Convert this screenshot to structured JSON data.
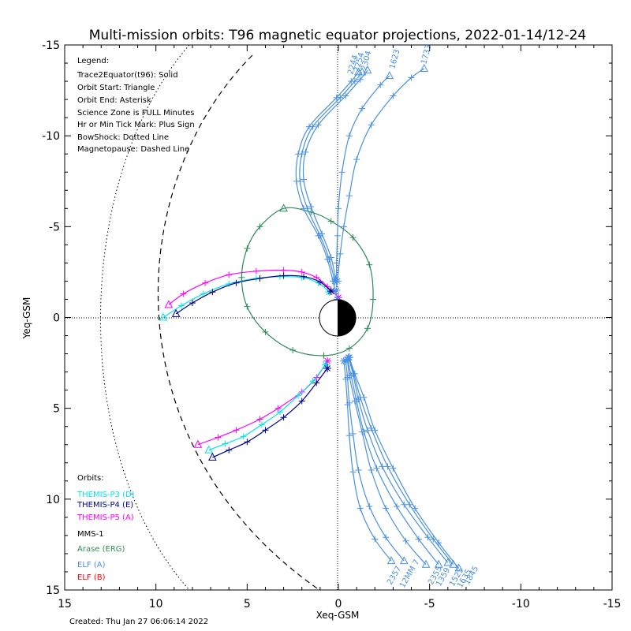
{
  "chart_data": {
    "type": "line",
    "title": "Multi-mission orbits: T96 magnetic equator projections, 2022-01-14/12-24",
    "xlabel": "Xeq-GSM",
    "ylabel": "Yeq-GSM",
    "xlim": [
      15,
      -15
    ],
    "ylim": [
      15,
      -15
    ],
    "x_ticks": [
      "15",
      "10",
      "5",
      "0",
      "-5",
      "-10",
      "-15"
    ],
    "y_ticks": [
      "-15",
      "-10",
      "-5",
      "0",
      "5",
      "10",
      "15"
    ],
    "grid": false,
    "legend_placement": "top-left",
    "created": "Created: Thu Jan 27 06:06:14 2022",
    "legend_text": [
      "Legend:",
      "Trace2Equator(t96): Solid",
      "Orbit Start: Triangle",
      "Orbit End: Asterisk",
      "Science Zone is FULL Minutes",
      "Hr or Min Tick Mark: Plus Sign",
      "BowShock: Dotted Line",
      "Magnetopause: Dashed Line"
    ],
    "orbits_title": "Orbits:",
    "orbits": [
      {
        "name": "THEMIS-P3 (D)",
        "color": "#00e5e5"
      },
      {
        "name": "THEMIS-P4 (E)",
        "color": "#00008b"
      },
      {
        "name": "THEMIS-P5 (A)",
        "color": "#ff00ff"
      },
      {
        "name": "MMS-1",
        "color": "#000000"
      },
      {
        "name": "Arase (ERG)",
        "color": "#2e8b57"
      },
      {
        "name": "ELF (A)",
        "color": "#4a90e2"
      },
      {
        "name": "ELF (B)",
        "color": "#ff0000"
      }
    ],
    "time_labels_top": [
      "2244",
      "2254",
      "2304",
      "1623",
      "1733"
    ],
    "time_labels_bottom": [
      "2357",
      "12MM 7",
      "2355",
      "1359",
      "1525",
      "1635",
      "1845"
    ],
    "series": [
      {
        "name": "THEMIS-P5 (A)",
        "color": "#ff00ff",
        "x": [
          9.3,
          8.5,
          7.3,
          6.0,
          4.5,
          3.0,
          2.0,
          1.2,
          0.6,
          0.0
        ],
        "y": [
          -0.7,
          -1.3,
          -1.9,
          -2.35,
          -2.55,
          -2.6,
          -2.5,
          -2.2,
          -1.7,
          -1.1
        ]
      },
      {
        "name": "THEMIS-P3 (D)",
        "color": "#00e5e5",
        "x": [
          9.6,
          8.6,
          7.4,
          6.0,
          4.5,
          3.2,
          2.0,
          1.1,
          0.5
        ],
        "y": [
          0.0,
          -0.65,
          -1.3,
          -1.85,
          -2.15,
          -2.25,
          -2.2,
          -1.9,
          -1.4
        ]
      },
      {
        "name": "THEMIS-P4 (E)",
        "color": "#00008b",
        "x": [
          8.9,
          8.0,
          6.9,
          5.6,
          4.3,
          3.0,
          1.9,
          1.0,
          0.4
        ],
        "y": [
          -0.2,
          -0.8,
          -1.4,
          -1.9,
          -2.15,
          -2.3,
          -2.25,
          -1.95,
          -1.45
        ]
      },
      {
        "name": "THEMIS-P5 (A)",
        "color": "#ff00ff",
        "x": [
          7.7,
          6.6,
          5.6,
          4.3,
          3.3,
          2.0,
          1.2,
          0.6
        ],
        "y": [
          7.0,
          6.6,
          6.2,
          5.6,
          5.0,
          4.1,
          3.3,
          2.4
        ]
      },
      {
        "name": "THEMIS-P3 (D)",
        "color": "#00e5e5",
        "x": [
          7.1,
          6.2,
          5.2,
          4.2,
          3.2,
          2.2,
          1.4,
          0.7
        ],
        "y": [
          7.3,
          6.95,
          6.55,
          5.9,
          5.2,
          4.3,
          3.5,
          2.6
        ]
      },
      {
        "name": "THEMIS-P4 (E)",
        "color": "#00008b",
        "x": [
          6.9,
          6.0,
          5.0,
          4.0,
          3.0,
          2.0,
          1.2,
          0.6
        ],
        "y": [
          7.7,
          7.3,
          6.85,
          6.2,
          5.5,
          4.6,
          3.6,
          2.8
        ]
      },
      {
        "name": "Arase (ERG)",
        "color": "#2e8b57",
        "closed": true,
        "x": [
          3.0,
          1.5,
          0.4,
          -0.8,
          -1.7,
          -1.9,
          -1.6,
          -0.6,
          0.8,
          2.5,
          4.0,
          5.0,
          5.3,
          5.0,
          4.3
        ],
        "y": [
          -6.0,
          -5.8,
          -5.3,
          -4.4,
          -2.9,
          -1.0,
          0.6,
          1.7,
          2.1,
          1.8,
          0.8,
          -0.6,
          -2.2,
          -3.8,
          -5.0
        ]
      },
      {
        "name": "ELF (A)",
        "color": "#4a90e2",
        "x": [
          -1.1,
          -0.7,
          0.1,
          1.6,
          2.2,
          2.3,
          1.9,
          1.1,
          0.6,
          0.3,
          0.05
        ],
        "y": [
          -13.5,
          -13.0,
          -12.1,
          -10.5,
          -9.0,
          -7.5,
          -6.0,
          -4.5,
          -3.2,
          -2.0,
          -1.0
        ]
      },
      {
        "name": "ELF (A)",
        "color": "#4a90e2",
        "x": [
          -1.3,
          -0.9,
          -0.1,
          1.4,
          2.0,
          2.1,
          1.7,
          1.0,
          0.5,
          0.2
        ],
        "y": [
          -13.5,
          -13.0,
          -12.1,
          -10.5,
          -9.0,
          -7.5,
          -6.0,
          -4.5,
          -3.2,
          -2.0
        ]
      },
      {
        "name": "ELF (A)",
        "color": "#4a90e2",
        "x": [
          -1.6,
          -1.2,
          -0.4,
          1.1,
          1.8,
          1.9,
          1.5,
          0.9,
          0.4,
          0.15
        ],
        "y": [
          -13.6,
          -13.1,
          -12.2,
          -10.6,
          -9.1,
          -7.6,
          -6.1,
          -4.6,
          -3.3,
          -2.1
        ]
      },
      {
        "name": "ELF (A)",
        "color": "#4a90e2",
        "x": [
          -2.8,
          -2.3,
          -1.3,
          -0.6,
          -0.2,
          0.0,
          0.05,
          0.1,
          0.1
        ],
        "y": [
          -13.3,
          -12.8,
          -11.5,
          -10.0,
          -8.0,
          -6.0,
          -4.5,
          -3.0,
          -1.5
        ]
      },
      {
        "name": "ELF (A)",
        "color": "#4a90e2",
        "x": [
          -4.7,
          -4.0,
          -3.0,
          -1.8,
          -1.0,
          -0.6,
          -0.3,
          -0.1,
          0.05
        ],
        "y": [
          -13.7,
          -13.2,
          -12.2,
          -10.6,
          -8.7,
          -6.7,
          -5.0,
          -3.5,
          -2.0
        ]
      },
      {
        "name": "ELF (A)",
        "color": "#4a90e2",
        "x": [
          -2.9,
          -2.0,
          -1.2,
          -0.8,
          -0.6,
          -0.5,
          -0.4,
          -0.3
        ],
        "y": [
          13.4,
          12.2,
          10.5,
          8.5,
          6.5,
          4.8,
          3.4,
          2.4
        ]
      },
      {
        "name": "ELF (A)",
        "color": "#4a90e2",
        "x": [
          -3.6,
          -2.6,
          -1.7,
          -1.1,
          -0.8,
          -0.6,
          -0.5,
          -0.4
        ],
        "y": [
          13.4,
          12.1,
          10.4,
          8.4,
          6.4,
          4.7,
          3.3,
          2.4
        ]
      },
      {
        "name": "ELF (A)",
        "color": "#4a90e2",
        "x": [
          -4.8,
          -3.7,
          -2.6,
          -1.8,
          -1.3,
          -0.9,
          -0.6,
          -0.5
        ],
        "y": [
          13.6,
          12.3,
          10.5,
          8.4,
          6.3,
          4.6,
          3.2,
          2.3
        ]
      },
      {
        "name": "ELF (A)",
        "color": "#4a90e2",
        "x": [
          -5.5,
          -4.4,
          -3.2,
          -2.1,
          -1.4,
          -1.0,
          -0.7,
          -0.5
        ],
        "y": [
          13.6,
          12.2,
          10.4,
          8.3,
          6.3,
          4.6,
          3.2,
          2.3
        ]
      },
      {
        "name": "ELF (A)",
        "color": "#4a90e2",
        "x": [
          -6.0,
          -4.9,
          -3.6,
          -2.4,
          -1.6,
          -1.1,
          -0.8,
          -0.55
        ],
        "y": [
          13.5,
          12.1,
          10.3,
          8.2,
          6.2,
          4.5,
          3.1,
          2.2
        ]
      },
      {
        "name": "ELF (A)",
        "color": "#4a90e2",
        "x": [
          -6.3,
          -5.2,
          -3.9,
          -2.7,
          -1.8,
          -1.2,
          -0.85,
          -0.6
        ],
        "y": [
          13.6,
          12.2,
          10.3,
          8.2,
          6.1,
          4.4,
          3.1,
          2.2
        ]
      },
      {
        "name": "ELF (A)",
        "color": "#4a90e2",
        "x": [
          -6.6,
          -5.5,
          -4.2,
          -3.0,
          -2.0,
          -1.4,
          -0.9,
          -0.6
        ],
        "y": [
          13.8,
          12.4,
          10.5,
          8.3,
          6.2,
          4.4,
          3.1,
          2.2
        ]
      }
    ]
  }
}
